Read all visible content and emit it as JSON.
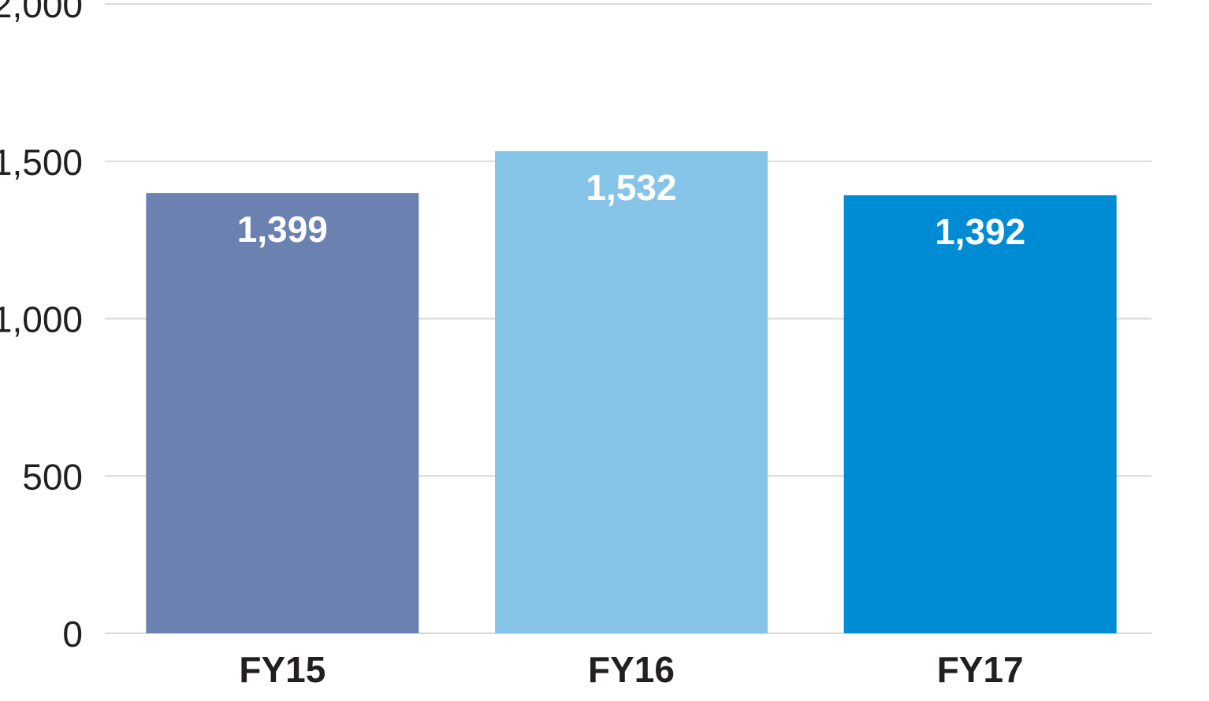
{
  "chart_data": {
    "type": "bar",
    "categories": [
      "FY15",
      "FY16",
      "FY17"
    ],
    "values": [
      1399,
      1532,
      1392
    ],
    "value_labels": [
      "1,399",
      "1,532",
      "1,392"
    ],
    "colors": [
      "#6b82b1",
      "#87c5e8",
      "#008bd5"
    ],
    "yticks": [
      0,
      500,
      1000,
      1500,
      2000
    ],
    "ytick_labels": [
      "0",
      "500",
      "1,000",
      "1,500",
      "2,000"
    ],
    "ylim": [
      0,
      2000
    ],
    "grid": true,
    "legend": "none"
  }
}
